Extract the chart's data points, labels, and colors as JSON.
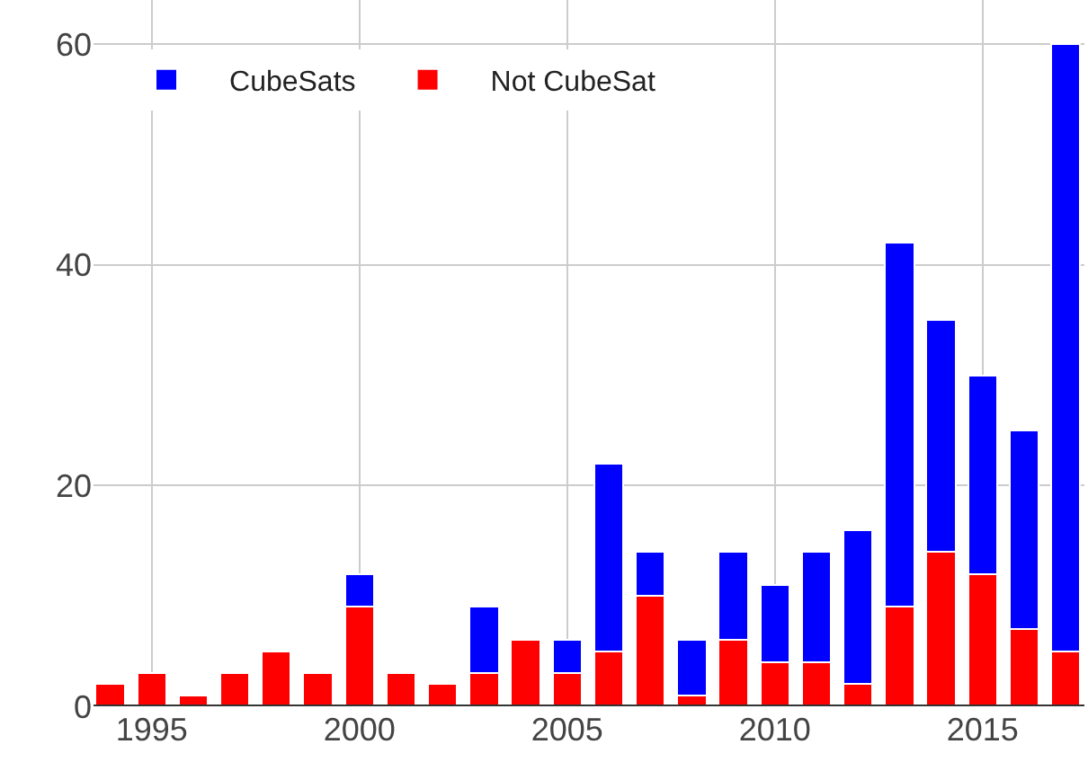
{
  "chart_data": {
    "type": "bar",
    "stacked": true,
    "x": [
      1994,
      1995,
      1996,
      1997,
      1998,
      1999,
      2000,
      2001,
      2002,
      2003,
      2004,
      2005,
      2006,
      2007,
      2008,
      2009,
      2010,
      2011,
      2012,
      2013,
      2014,
      2015,
      2016,
      2017
    ],
    "series": [
      {
        "name": "Not CubeSat",
        "color": "#ff0000",
        "values": [
          2,
          3,
          1,
          3,
          5,
          3,
          9,
          3,
          2,
          3,
          6,
          3,
          5,
          10,
          1,
          6,
          4,
          4,
          2,
          9,
          14,
          12,
          7,
          5
        ]
      },
      {
        "name": "CubeSats",
        "color": "#0000ff",
        "values": [
          null,
          null,
          null,
          null,
          null,
          null,
          3,
          null,
          null,
          6,
          null,
          3,
          17,
          4,
          5,
          8,
          7,
          10,
          14,
          33,
          21,
          18,
          18,
          55
        ]
      }
    ],
    "xlim": [
      1993.6,
      2017.45
    ],
    "xticks": [
      1995,
      2000,
      2005,
      2010,
      2015
    ],
    "ylim": [
      0,
      64
    ],
    "yticks": [
      0,
      20,
      40,
      60
    ],
    "grid": true,
    "legend": "top left"
  }
}
